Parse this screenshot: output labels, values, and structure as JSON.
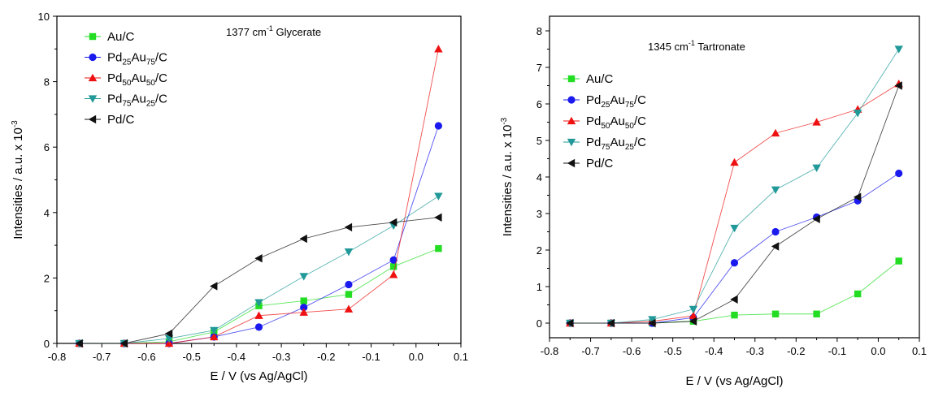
{
  "chart_data": [
    {
      "type": "line",
      "title": "",
      "annotation": {
        "prefix": "1377 cm",
        "sup": "-1",
        "suffix": " Glycerate"
      },
      "xlabel": "E / V (vs Ag/AgCl)",
      "ylabel": {
        "text": "Intensities / a.u. x 10",
        "sup": "-3"
      },
      "xlim": [
        -0.8,
        0.1
      ],
      "ylim": [
        0,
        10
      ],
      "xticks": [
        -0.8,
        -0.7,
        -0.6,
        -0.5,
        -0.4,
        -0.3,
        -0.2,
        -0.1,
        0.0,
        0.1
      ],
      "xtick_labels": [
        "-0.8",
        "-0.7",
        "-0.6",
        "-0.5",
        "-0.4",
        "-0.3",
        "-0.2",
        "-0.1",
        "0.0",
        "0.1"
      ],
      "yticks": [
        0,
        2,
        4,
        6,
        8,
        10
      ],
      "ytick_labels": [
        "0",
        "2",
        "4",
        "6",
        "8",
        "10"
      ],
      "legend_position": "top-left",
      "grid": false,
      "x": [
        -0.75,
        -0.65,
        -0.55,
        -0.45,
        -0.35,
        -0.25,
        -0.15,
        -0.05,
        0.05
      ],
      "series": [
        {
          "legend": [
            {
              "t": "Au/C"
            }
          ],
          "color": "#22dd22",
          "marker": "square",
          "values": [
            0,
            0,
            0.05,
            0.35,
            1.15,
            1.3,
            1.5,
            2.35,
            2.9
          ]
        },
        {
          "legend": [
            {
              "t": "Pd"
            },
            {
              "t": "25",
              "sub": true
            },
            {
              "t": "Au"
            },
            {
              "t": "75",
              "sub": true
            },
            {
              "t": "/C"
            }
          ],
          "color": "#1a1aee",
          "marker": "circle",
          "values": [
            0,
            0,
            0,
            0.2,
            0.5,
            1.1,
            1.8,
            2.55,
            6.65
          ]
        },
        {
          "legend": [
            {
              "t": "Pd"
            },
            {
              "t": "50",
              "sub": true
            },
            {
              "t": "Au"
            },
            {
              "t": "50",
              "sub": true
            },
            {
              "t": "/C"
            }
          ],
          "color": "#ee1111",
          "marker": "triangle-up",
          "values": [
            0,
            0,
            0,
            0.2,
            0.85,
            0.95,
            1.05,
            2.1,
            9.0
          ]
        },
        {
          "legend": [
            {
              "t": "Pd"
            },
            {
              "t": "75",
              "sub": true
            },
            {
              "t": "Au"
            },
            {
              "t": "25",
              "sub": true
            },
            {
              "t": "/C"
            }
          ],
          "color": "#229999",
          "marker": "triangle-down",
          "values": [
            0,
            0,
            0.15,
            0.4,
            1.25,
            2.05,
            2.8,
            3.6,
            4.5
          ]
        },
        {
          "legend": [
            {
              "t": "Pd/C"
            }
          ],
          "color": "#111111",
          "marker": "triangle-left",
          "values": [
            0,
            0,
            0.3,
            1.75,
            2.6,
            3.2,
            3.55,
            3.7,
            3.85
          ]
        }
      ]
    },
    {
      "type": "line",
      "title": "",
      "annotation": {
        "prefix": "1345 cm",
        "sup": "-1",
        "suffix": " Tartronate"
      },
      "xlabel": "E / V (vs Ag/AgCl)",
      "ylabel": {
        "text": "Intensities / a.u. x 10",
        "sup": "-3"
      },
      "xlim": [
        -0.8,
        0.1
      ],
      "ylim": [
        -0.4,
        8.4
      ],
      "xticks": [
        -0.8,
        -0.7,
        -0.6,
        -0.5,
        -0.4,
        -0.3,
        -0.2,
        -0.1,
        0.0,
        0.1
      ],
      "xtick_labels": [
        "-0.8",
        "-0.7",
        "-0.6",
        "-0.5",
        "-0.4",
        "-0.3",
        "-0.2",
        "-0.1",
        "0.0",
        "0.1"
      ],
      "yticks": [
        0,
        1,
        2,
        3,
        4,
        5,
        6,
        7,
        8
      ],
      "ytick_labels": [
        "0",
        "1",
        "2",
        "3",
        "4",
        "5",
        "6",
        "7",
        "8"
      ],
      "legend_position": "left",
      "grid": false,
      "x": [
        -0.75,
        -0.65,
        -0.55,
        -0.45,
        -0.35,
        -0.25,
        -0.15,
        -0.05,
        0.05
      ],
      "series": [
        {
          "legend": [
            {
              "t": "Au/C"
            }
          ],
          "color": "#22dd22",
          "marker": "square",
          "values": [
            0,
            0,
            0,
            0.05,
            0.22,
            0.25,
            0.25,
            0.8,
            1.7
          ]
        },
        {
          "legend": [
            {
              "t": "Pd"
            },
            {
              "t": "25",
              "sub": true
            },
            {
              "t": "Au"
            },
            {
              "t": "75",
              "sub": true
            },
            {
              "t": "/C"
            }
          ],
          "color": "#1a1aee",
          "marker": "circle",
          "values": [
            0,
            0,
            0,
            0.15,
            1.65,
            2.5,
            2.9,
            3.35,
            4.1
          ]
        },
        {
          "legend": [
            {
              "t": "Pd"
            },
            {
              "t": "50",
              "sub": true
            },
            {
              "t": "Au"
            },
            {
              "t": "50",
              "sub": true
            },
            {
              "t": "/C"
            }
          ],
          "color": "#ee1111",
          "marker": "triangle-up",
          "values": [
            0,
            0,
            0.05,
            0.2,
            4.4,
            5.2,
            5.5,
            5.85,
            6.55
          ]
        },
        {
          "legend": [
            {
              "t": "Pd"
            },
            {
              "t": "75",
              "sub": true
            },
            {
              "t": "Au"
            },
            {
              "t": "25",
              "sub": true
            },
            {
              "t": "/C"
            }
          ],
          "color": "#229999",
          "marker": "triangle-down",
          "values": [
            0,
            0,
            0.1,
            0.38,
            2.6,
            3.65,
            4.25,
            5.75,
            7.5
          ]
        },
        {
          "legend": [
            {
              "t": "Pd/C"
            }
          ],
          "color": "#111111",
          "marker": "triangle-left",
          "values": [
            0,
            0,
            0,
            0.05,
            0.65,
            2.1,
            2.85,
            3.45,
            6.5
          ]
        }
      ]
    }
  ]
}
